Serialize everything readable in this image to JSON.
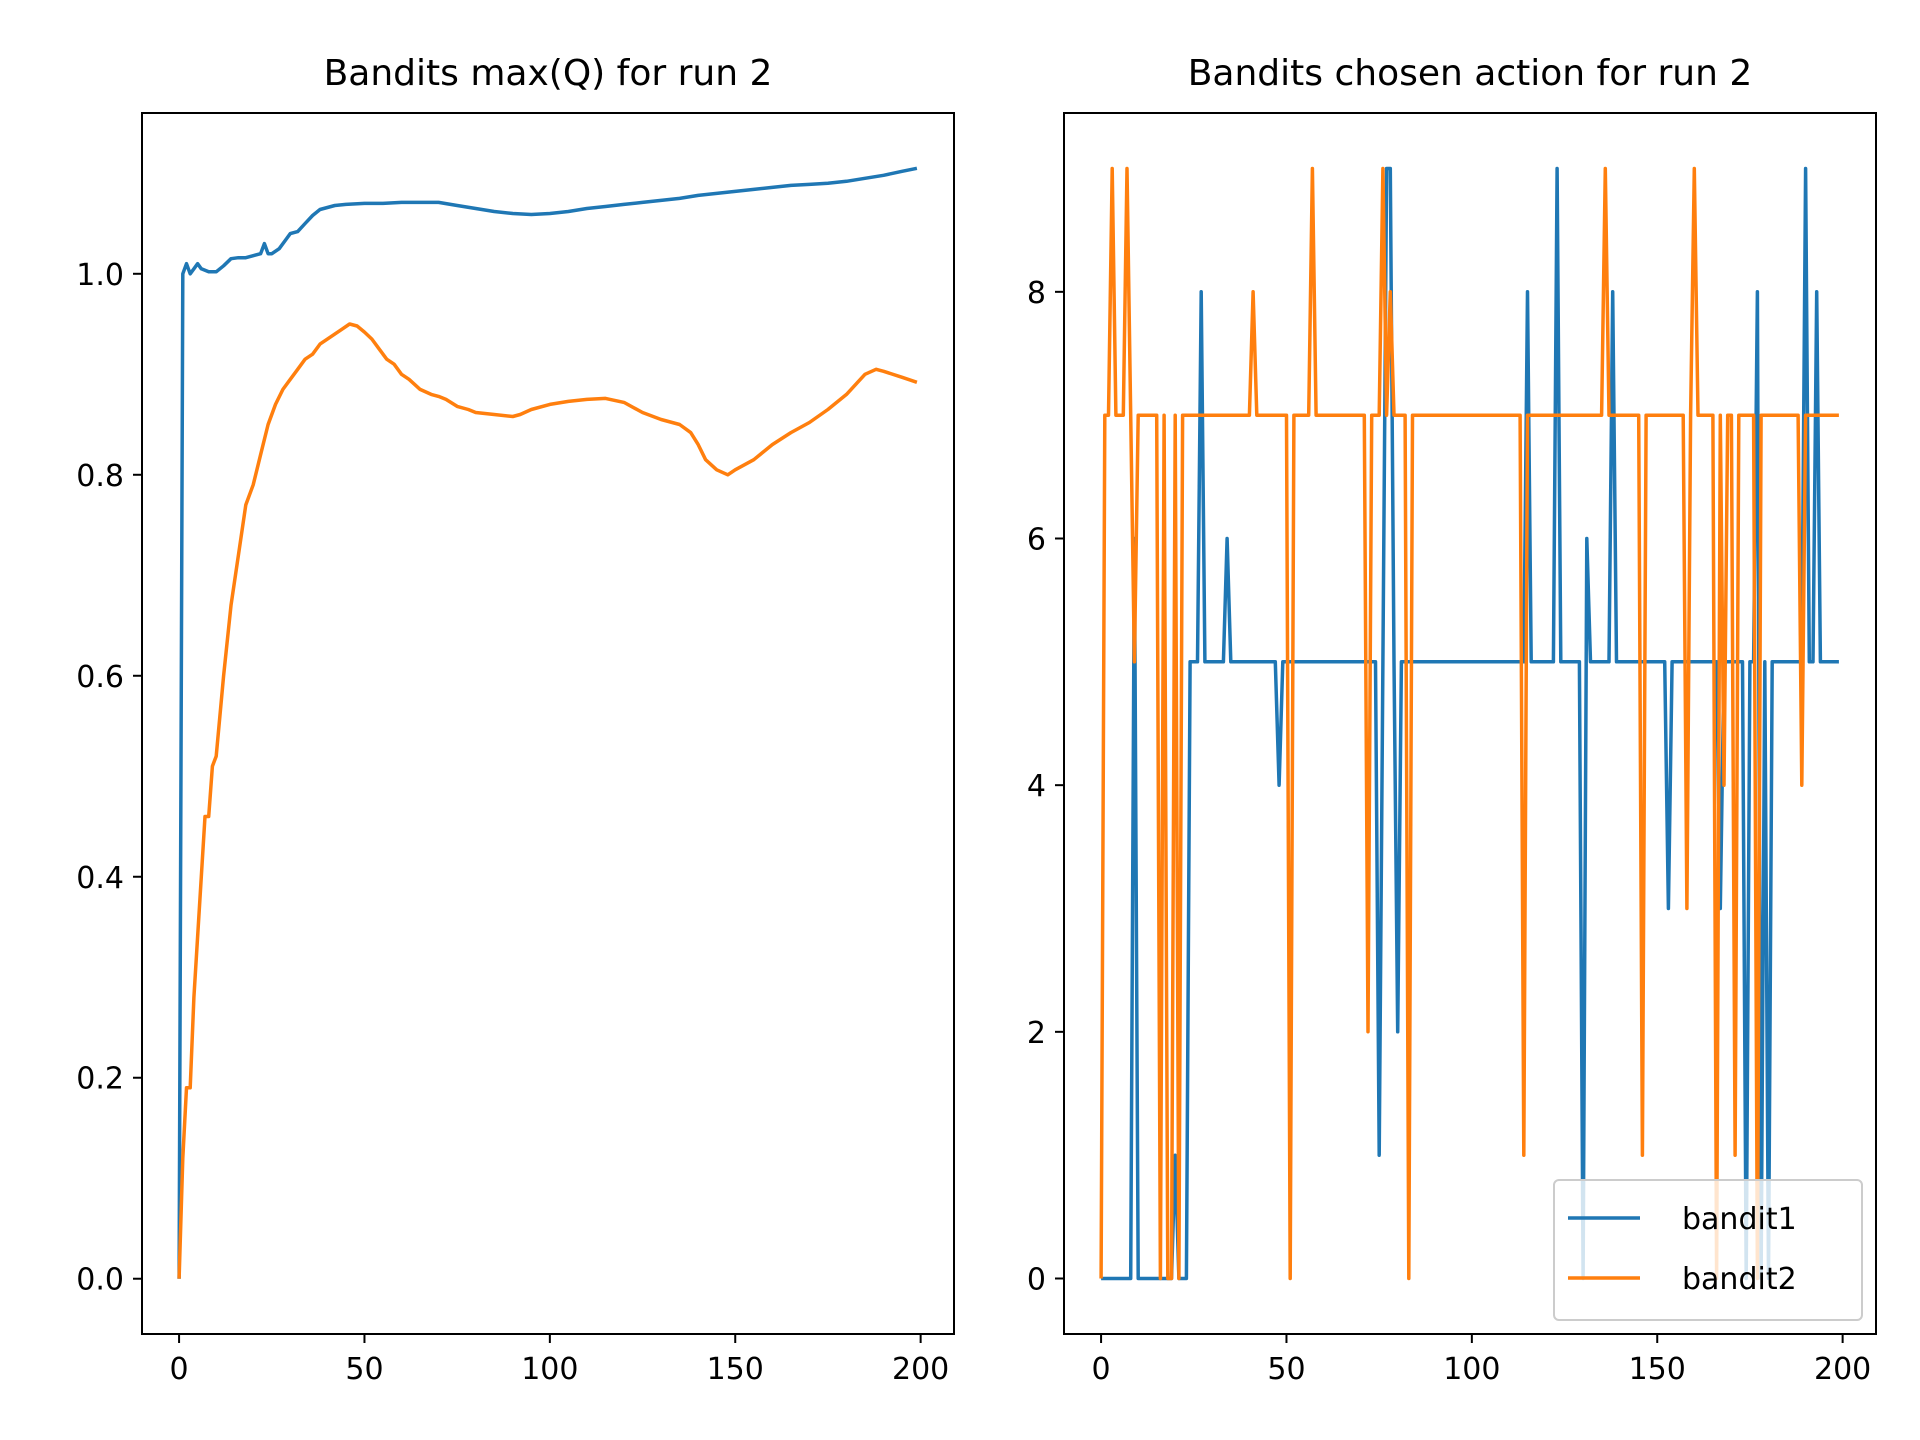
{
  "chart_data": [
    {
      "type": "line",
      "title": "Bandits max(Q) for run 2",
      "xlabel": "",
      "ylabel": "",
      "xlim": [
        -10,
        209
      ],
      "ylim": [
        -0.055,
        1.16
      ],
      "xticks": [
        0,
        50,
        100,
        150,
        200
      ],
      "xtick_labels": [
        "0",
        "50",
        "100",
        "150",
        "200"
      ],
      "yticks": [
        0.0,
        0.2,
        0.4,
        0.6,
        0.8,
        1.0
      ],
      "ytick_labels": [
        "0.0",
        "0.2",
        "0.4",
        "0.6",
        "0.8",
        "1.0"
      ],
      "grid": false,
      "legend": null,
      "series": [
        {
          "color": "#1f77b4",
          "x": [
            0,
            1,
            2,
            3,
            4,
            5,
            6,
            8,
            10,
            12,
            14,
            16,
            18,
            20,
            22,
            23,
            24,
            25,
            27,
            29,
            30,
            32,
            34,
            36,
            38,
            40,
            42,
            45,
            50,
            55,
            60,
            65,
            70,
            75,
            80,
            85,
            90,
            95,
            100,
            105,
            110,
            115,
            120,
            125,
            130,
            135,
            140,
            145,
            150,
            155,
            160,
            165,
            170,
            175,
            180,
            185,
            190,
            195,
            199
          ],
          "y": [
            0.0,
            1.0,
            1.01,
            1.0,
            1.005,
            1.01,
            1.005,
            1.002,
            1.002,
            1.008,
            1.015,
            1.016,
            1.016,
            1.018,
            1.02,
            1.03,
            1.02,
            1.02,
            1.025,
            1.035,
            1.04,
            1.042,
            1.05,
            1.058,
            1.064,
            1.066,
            1.068,
            1.069,
            1.07,
            1.07,
            1.071,
            1.071,
            1.071,
            1.068,
            1.065,
            1.062,
            1.06,
            1.059,
            1.06,
            1.062,
            1.065,
            1.067,
            1.069,
            1.071,
            1.073,
            1.075,
            1.078,
            1.08,
            1.082,
            1.084,
            1.086,
            1.088,
            1.089,
            1.09,
            1.092,
            1.095,
            1.098,
            1.102,
            1.105
          ]
        },
        {
          "color": "#ff7f0e",
          "x": [
            0,
            1,
            2,
            3,
            4,
            5,
            6,
            7,
            8,
            9,
            10,
            12,
            14,
            16,
            18,
            20,
            22,
            24,
            26,
            28,
            30,
            32,
            34,
            36,
            38,
            40,
            42,
            44,
            46,
            48,
            50,
            52,
            54,
            56,
            58,
            60,
            62,
            65,
            68,
            70,
            72,
            75,
            78,
            80,
            85,
            90,
            92,
            95,
            100,
            105,
            110,
            115,
            120,
            125,
            130,
            135,
            138,
            140,
            142,
            145,
            148,
            150,
            155,
            160,
            165,
            170,
            175,
            180,
            185,
            188,
            190,
            195,
            199
          ],
          "y": [
            0.0,
            0.12,
            0.19,
            0.19,
            0.28,
            0.34,
            0.4,
            0.46,
            0.46,
            0.51,
            0.52,
            0.6,
            0.67,
            0.72,
            0.77,
            0.79,
            0.82,
            0.85,
            0.87,
            0.885,
            0.895,
            0.905,
            0.915,
            0.92,
            0.93,
            0.935,
            0.94,
            0.945,
            0.95,
            0.948,
            0.942,
            0.935,
            0.925,
            0.915,
            0.91,
            0.9,
            0.895,
            0.885,
            0.88,
            0.878,
            0.875,
            0.868,
            0.865,
            0.862,
            0.86,
            0.858,
            0.86,
            0.865,
            0.87,
            0.873,
            0.875,
            0.876,
            0.872,
            0.862,
            0.855,
            0.85,
            0.842,
            0.83,
            0.815,
            0.805,
            0.8,
            0.805,
            0.815,
            0.83,
            0.842,
            0.852,
            0.865,
            0.88,
            0.9,
            0.905,
            0.903,
            0.897,
            0.892
          ]
        }
      ]
    },
    {
      "type": "line",
      "title": "Bandits chosen action for run 2",
      "xlabel": "",
      "ylabel": "",
      "xlim": [
        -10,
        209
      ],
      "ylim": [
        -0.45,
        9.45
      ],
      "xticks": [
        0,
        50,
        100,
        150,
        200
      ],
      "xtick_labels": [
        "0",
        "50",
        "100",
        "150",
        "200"
      ],
      "yticks": [
        0,
        2,
        4,
        6,
        8
      ],
      "ytick_labels": [
        "0",
        "2",
        "4",
        "6",
        "8"
      ],
      "grid": false,
      "legend_position": "lower right",
      "series": [
        {
          "name": "bandit1",
          "color": "#1f77b4",
          "x": [
            0,
            1,
            8,
            9,
            10,
            19,
            20,
            21,
            22,
            23,
            24,
            26,
            27,
            28,
            33,
            34,
            35,
            47,
            48,
            49,
            50,
            74,
            75,
            76,
            77,
            78,
            79,
            80,
            81,
            113,
            114,
            115,
            116,
            121,
            122,
            123,
            124,
            129,
            130,
            131,
            132,
            136,
            137,
            138,
            139,
            152,
            153,
            154,
            155,
            166,
            167,
            168,
            169,
            173,
            174,
            175,
            176,
            177,
            178,
            179,
            180,
            181,
            182,
            188,
            189,
            190,
            191,
            192,
            193,
            194,
            195,
            199
          ],
          "y": [
            0,
            0,
            0,
            6,
            0,
            0,
            1,
            0,
            0,
            0,
            5,
            5,
            8,
            5,
            5,
            6,
            5,
            5,
            4,
            5,
            5,
            5,
            1,
            5,
            9,
            9,
            5,
            2,
            5,
            5,
            5,
            8,
            5,
            5,
            5,
            9,
            5,
            5,
            0,
            6,
            5,
            5,
            5,
            8,
            5,
            5,
            3,
            5,
            5,
            5,
            3,
            5,
            5,
            5,
            0,
            5,
            5,
            8,
            0,
            5,
            0,
            5,
            5,
            5,
            5,
            9,
            5,
            5,
            8,
            5,
            5,
            5
          ]
        },
        {
          "name": "bandit2",
          "color": "#ff7f0e",
          "x": [
            0,
            1,
            2,
            3,
            4,
            5,
            6,
            7,
            8,
            9,
            10,
            11,
            15,
            16,
            17,
            18,
            19,
            20,
            21,
            22,
            23,
            40,
            41,
            42,
            50,
            51,
            52,
            53,
            56,
            57,
            58,
            70,
            71,
            72,
            73,
            74,
            75,
            76,
            77,
            78,
            79,
            80,
            82,
            83,
            84,
            85,
            113,
            114,
            115,
            135,
            136,
            137,
            138,
            145,
            146,
            147,
            157,
            158,
            159,
            160,
            161,
            165,
            166,
            167,
            168,
            169,
            170,
            171,
            172,
            175,
            176,
            177,
            178,
            179,
            180,
            188,
            189,
            190,
            191,
            199
          ],
          "y": [
            0,
            7,
            7,
            9,
            7,
            7,
            7,
            9,
            7,
            5,
            7,
            7,
            7,
            0,
            7,
            0,
            0,
            7,
            0,
            7,
            7,
            7,
            8,
            7,
            7,
            0,
            7,
            7,
            7,
            9,
            7,
            7,
            7,
            2,
            7,
            7,
            7,
            9,
            7,
            8,
            7,
            7,
            7,
            0,
            7,
            7,
            7,
            1,
            7,
            7,
            9,
            7,
            7,
            7,
            1,
            7,
            7,
            3,
            7,
            9,
            7,
            7,
            0,
            7,
            4,
            7,
            7,
            1,
            7,
            7,
            7,
            0,
            7,
            7,
            7,
            7,
            4,
            7,
            7,
            7
          ]
        }
      ]
    }
  ]
}
